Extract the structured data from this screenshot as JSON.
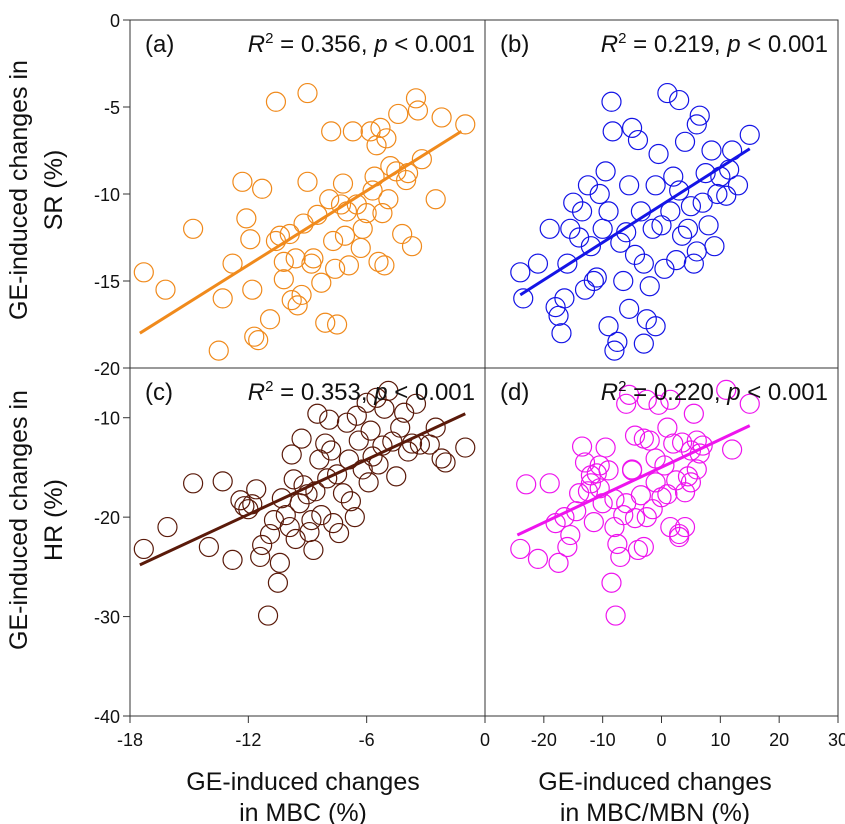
{
  "figure": {
    "ylabel_top": [
      "GE-induced changes in",
      "SR (%)"
    ],
    "ylabel_bottom": [
      "GE-induced changes in",
      "HR (%)"
    ],
    "xlabel_left": [
      "GE-induced changes",
      "in MBC (%)"
    ],
    "xlabel_right": [
      "GE-induced changes",
      "in MBC/MBN (%)"
    ]
  },
  "chart_data": [
    {
      "type": "scatter",
      "panel": "(a)",
      "stat_r2": "= 0.356,",
      "stat_p": "< 0.001",
      "color": "#f08a1c",
      "xlim": [
        -18,
        0
      ],
      "ylim": [
        -20,
        0
      ],
      "xticks": [],
      "yticks": [
        0,
        -5,
        -10,
        -15,
        -20
      ],
      "fit": [
        [
          -17.5,
          -18.0
        ],
        [
          -1.2,
          -6.4
        ]
      ],
      "points": [
        [
          -17.3,
          -14.5
        ],
        [
          -16.2,
          -15.5
        ],
        [
          -14.8,
          -12.0
        ],
        [
          -13.5,
          -19.0
        ],
        [
          -13.3,
          -16.0
        ],
        [
          -12.8,
          -14.0
        ],
        [
          -12.3,
          -9.3
        ],
        [
          -12.1,
          -11.4
        ],
        [
          -11.9,
          -12.6
        ],
        [
          -11.8,
          -15.5
        ],
        [
          -11.7,
          -18.2
        ],
        [
          -11.5,
          -18.4
        ],
        [
          -11.3,
          -9.7
        ],
        [
          -10.9,
          -17.2
        ],
        [
          -10.6,
          -4.7
        ],
        [
          -10.6,
          -12.7
        ],
        [
          -10.4,
          -12.4
        ],
        [
          -10.2,
          -13.9
        ],
        [
          -10.2,
          -14.9
        ],
        [
          -9.9,
          -12.3
        ],
        [
          -9.8,
          -16.1
        ],
        [
          -9.6,
          -13.7
        ],
        [
          -9.5,
          -16.4
        ],
        [
          -9.3,
          -15.8
        ],
        [
          -9.2,
          -11.7
        ],
        [
          -9.0,
          -9.3
        ],
        [
          -9.0,
          -4.2
        ],
        [
          -8.8,
          -14.0
        ],
        [
          -8.7,
          -13.7
        ],
        [
          -8.5,
          -11.2
        ],
        [
          -8.3,
          -15.1
        ],
        [
          -8.1,
          -17.4
        ],
        [
          -7.9,
          -10.3
        ],
        [
          -7.8,
          -6.4
        ],
        [
          -7.7,
          -12.7
        ],
        [
          -7.6,
          -14.3
        ],
        [
          -7.5,
          -17.5
        ],
        [
          -7.3,
          -10.6
        ],
        [
          -7.2,
          -9.4
        ],
        [
          -7.1,
          -12.4
        ],
        [
          -7.0,
          -11.0
        ],
        [
          -6.9,
          -14.1
        ],
        [
          -6.7,
          -6.4
        ],
        [
          -6.5,
          -10.6
        ],
        [
          -6.3,
          -13.1
        ],
        [
          -6.2,
          -12.0
        ],
        [
          -6.0,
          -11.1
        ],
        [
          -5.8,
          -6.4
        ],
        [
          -5.7,
          -9.8
        ],
        [
          -5.6,
          -9.0
        ],
        [
          -5.5,
          -7.2
        ],
        [
          -5.4,
          -13.9
        ],
        [
          -5.3,
          -6.2
        ],
        [
          -5.2,
          -11.1
        ],
        [
          -5.1,
          -14.1
        ],
        [
          -5.0,
          -6.8
        ],
        [
          -4.9,
          -10.3
        ],
        [
          -4.8,
          -8.4
        ],
        [
          -4.5,
          -8.7
        ],
        [
          -4.4,
          -5.4
        ],
        [
          -4.2,
          -12.3
        ],
        [
          -4.0,
          -9.2
        ],
        [
          -3.9,
          -8.8
        ],
        [
          -3.7,
          -13.0
        ],
        [
          -3.5,
          -4.5
        ],
        [
          -3.4,
          -5.2
        ],
        [
          -3.2,
          -8.0
        ],
        [
          -2.5,
          -10.3
        ],
        [
          -2.2,
          -5.6
        ],
        [
          -1.0,
          -6.0
        ]
      ]
    },
    {
      "type": "scatter",
      "panel": "(b)",
      "stat_r2": "= 0.219,",
      "stat_p": "< 0.001",
      "color": "#1414e6",
      "xlim": [
        -30,
        30
      ],
      "ylim": [
        -20,
        0
      ],
      "xticks": [],
      "yticks": [],
      "fit": [
        [
          -24.0,
          -15.8
        ],
        [
          15.0,
          -7.4
        ]
      ],
      "points": [
        [
          -24.0,
          -14.5
        ],
        [
          -23.5,
          -16.0
        ],
        [
          -21.0,
          -14.0
        ],
        [
          -19.0,
          -12.0
        ],
        [
          -18.0,
          -16.5
        ],
        [
          -17.5,
          -17.0
        ],
        [
          -17.0,
          -18.0
        ],
        [
          -16.5,
          -16.0
        ],
        [
          -16.0,
          -14.0
        ],
        [
          -15.5,
          -12.0
        ],
        [
          -15.0,
          -10.5
        ],
        [
          -14.0,
          -12.5
        ],
        [
          -13.5,
          -11.0
        ],
        [
          -13.0,
          -15.5
        ],
        [
          -12.5,
          -9.5
        ],
        [
          -12.0,
          -13.0
        ],
        [
          -11.5,
          -15.0
        ],
        [
          -11.0,
          -14.8
        ],
        [
          -10.5,
          -10.0
        ],
        [
          -10.0,
          -12.0
        ],
        [
          -9.5,
          -8.7
        ],
        [
          -9.0,
          -11.0
        ],
        [
          -8.5,
          -4.7
        ],
        [
          -8.3,
          -6.4
        ],
        [
          -8.0,
          -19.0
        ],
        [
          -7.5,
          -18.5
        ],
        [
          -7.0,
          -12.8
        ],
        [
          -6.5,
          -15.0
        ],
        [
          -6.0,
          -12.2
        ],
        [
          -5.5,
          -9.5
        ],
        [
          -5.0,
          -6.2
        ],
        [
          -4.5,
          -13.5
        ],
        [
          -4.0,
          -6.9
        ],
        [
          -3.5,
          -11.0
        ],
        [
          -3.0,
          -14.0
        ],
        [
          -2.5,
          -17.2
        ],
        [
          -2.0,
          -15.3
        ],
        [
          -1.5,
          -12.0
        ],
        [
          -1.0,
          -9.5
        ],
        [
          -0.5,
          -7.7
        ],
        [
          0.0,
          -11.8
        ],
        [
          0.5,
          -14.3
        ],
        [
          1.0,
          -4.2
        ],
        [
          1.5,
          -11.0
        ],
        [
          2.0,
          -9.0
        ],
        [
          2.5,
          -13.8
        ],
        [
          3.0,
          -9.8
        ],
        [
          3.5,
          -12.4
        ],
        [
          4.0,
          -7.0
        ],
        [
          4.5,
          -12.0
        ],
        [
          5.0,
          -10.7
        ],
        [
          5.5,
          -14.0
        ],
        [
          6.0,
          -6.0
        ],
        [
          6.5,
          -5.5
        ],
        [
          7.0,
          -10.5
        ],
        [
          7.5,
          -8.8
        ],
        [
          8.0,
          -11.8
        ],
        [
          8.5,
          -7.5
        ],
        [
          9.0,
          -13.0
        ],
        [
          9.5,
          -10.0
        ],
        [
          10.0,
          -9.0
        ],
        [
          11.0,
          -10.1
        ],
        [
          11.5,
          -8.6
        ],
        [
          12.0,
          -7.5
        ],
        [
          13.0,
          -9.5
        ],
        [
          15.0,
          -6.6
        ],
        [
          -3.0,
          -18.6
        ],
        [
          -9.0,
          -17.6
        ],
        [
          3.0,
          -4.6
        ],
        [
          -5.5,
          -16.6
        ],
        [
          6.0,
          -13.3
        ],
        [
          -1.0,
          -17.6
        ]
      ]
    },
    {
      "type": "scatter",
      "panel": "(c)",
      "stat_r2": "= 0.353,",
      "stat_p": "< 0.001",
      "color": "#5a1a0a",
      "xlim": [
        -18,
        0
      ],
      "ylim": [
        -40,
        -5
      ],
      "xticks": [
        -18,
        -12,
        -6,
        0
      ],
      "yticks": [
        -10,
        -20,
        -30,
        -40
      ],
      "fit": [
        [
          -17.5,
          -24.8
        ],
        [
          -1.0,
          -9.6
        ]
      ],
      "points": [
        [
          -17.3,
          -23.2
        ],
        [
          -16.1,
          -21.0
        ],
        [
          -14.8,
          -16.6
        ],
        [
          -14.0,
          -23.0
        ],
        [
          -13.3,
          -16.4
        ],
        [
          -12.8,
          -24.3
        ],
        [
          -12.4,
          -18.3
        ],
        [
          -12.2,
          -18.9
        ],
        [
          -12.0,
          -19.2
        ],
        [
          -11.8,
          -18.7
        ],
        [
          -11.6,
          -17.2
        ],
        [
          -11.4,
          -24.0
        ],
        [
          -11.3,
          -22.8
        ],
        [
          -11.0,
          -29.9
        ],
        [
          -10.9,
          -21.7
        ],
        [
          -10.7,
          -20.3
        ],
        [
          -10.5,
          -26.6
        ],
        [
          -10.4,
          -24.6
        ],
        [
          -10.3,
          -18.1
        ],
        [
          -10.1,
          -19.8
        ],
        [
          -9.9,
          -21.0
        ],
        [
          -9.8,
          -13.7
        ],
        [
          -9.7,
          -16.2
        ],
        [
          -9.6,
          -22.2
        ],
        [
          -9.4,
          -18.6
        ],
        [
          -9.3,
          -12.1
        ],
        [
          -9.2,
          -16.8
        ],
        [
          -9.0,
          -17.7
        ],
        [
          -8.9,
          -21.5
        ],
        [
          -8.8,
          -20.3
        ],
        [
          -8.7,
          -23.3
        ],
        [
          -8.6,
          -17.4
        ],
        [
          -8.5,
          -9.6
        ],
        [
          -8.4,
          -14.2
        ],
        [
          -8.3,
          -19.8
        ],
        [
          -8.1,
          -12.6
        ],
        [
          -8.0,
          -16.1
        ],
        [
          -7.9,
          -10.2
        ],
        [
          -7.8,
          -13.3
        ],
        [
          -7.7,
          -20.6
        ],
        [
          -7.5,
          -15.7
        ],
        [
          -7.4,
          -21.6
        ],
        [
          -7.2,
          -17.6
        ],
        [
          -7.0,
          -10.5
        ],
        [
          -6.9,
          -14.2
        ],
        [
          -6.8,
          -18.4
        ],
        [
          -6.6,
          -20.0
        ],
        [
          -6.5,
          -9.8
        ],
        [
          -6.4,
          -12.3
        ],
        [
          -6.2,
          -15.2
        ],
        [
          -6.0,
          -8.5
        ],
        [
          -5.9,
          -16.5
        ],
        [
          -5.8,
          -11.3
        ],
        [
          -5.7,
          -13.9
        ],
        [
          -5.5,
          -8.0
        ],
        [
          -5.4,
          -14.7
        ],
        [
          -5.2,
          -12.8
        ],
        [
          -5.1,
          -9.1
        ],
        [
          -4.9,
          -7.3
        ],
        [
          -4.7,
          -12.4
        ],
        [
          -4.5,
          -15.9
        ],
        [
          -4.3,
          -11.0
        ],
        [
          -4.1,
          -9.5
        ],
        [
          -3.9,
          -13.4
        ],
        [
          -3.7,
          -12.6
        ],
        [
          -3.5,
          -8.6
        ],
        [
          -3.3,
          -12.7
        ],
        [
          -2.8,
          -12.7
        ],
        [
          -2.5,
          -11.0
        ],
        [
          -2.2,
          -14.1
        ],
        [
          -2.0,
          -14.5
        ],
        [
          -1.0,
          -13.0
        ]
      ]
    },
    {
      "type": "scatter",
      "panel": "(d)",
      "stat_r2": "= 0.220,",
      "stat_p": "< 0.001",
      "color": "#ee14ee",
      "xlim": [
        -30,
        30
      ],
      "ylim": [
        -40,
        -5
      ],
      "xticks": [
        -20,
        -10,
        0,
        10,
        20,
        30
      ],
      "yticks": [],
      "fit": [
        [
          -24.5,
          -21.8
        ],
        [
          15.0,
          -10.8
        ]
      ],
      "points": [
        [
          -24.0,
          -23.2
        ],
        [
          -23.0,
          -16.7
        ],
        [
          -21.0,
          -24.2
        ],
        [
          -19.0,
          -16.6
        ],
        [
          -18.0,
          -20.6
        ],
        [
          -17.5,
          -24.6
        ],
        [
          -16.5,
          -20.0
        ],
        [
          -16.0,
          -23.0
        ],
        [
          -15.5,
          -21.8
        ],
        [
          -14.5,
          -19.4
        ],
        [
          -14.0,
          -17.6
        ],
        [
          -13.5,
          -12.9
        ],
        [
          -13.0,
          -14.5
        ],
        [
          -12.5,
          -17.4
        ],
        [
          -12.0,
          -16.6
        ],
        [
          -11.5,
          -20.5
        ],
        [
          -11.0,
          -15.6
        ],
        [
          -10.5,
          -14.8
        ],
        [
          -10.0,
          -18.6
        ],
        [
          -9.5,
          -13.0
        ],
        [
          -9.0,
          -15.3
        ],
        [
          -8.5,
          -26.6
        ],
        [
          -8.0,
          -21.0
        ],
        [
          -7.8,
          -29.9
        ],
        [
          -7.5,
          -22.7
        ],
        [
          -7.0,
          -24.0
        ],
        [
          -6.5,
          -19.8
        ],
        [
          -6.0,
          -18.6
        ],
        [
          -5.5,
          -7.7
        ],
        [
          -5.0,
          -15.2
        ],
        [
          -4.5,
          -20.1
        ],
        [
          -4.0,
          -23.3
        ],
        [
          -3.5,
          -17.8
        ],
        [
          -3.0,
          -12.1
        ],
        [
          -2.5,
          -20.0
        ],
        [
          -2.0,
          -12.3
        ],
        [
          -1.5,
          -19.2
        ],
        [
          -1.0,
          -16.5
        ],
        [
          -0.5,
          -8.7
        ],
        [
          0.0,
          -18.0
        ],
        [
          0.5,
          -14.8
        ],
        [
          1.0,
          -17.7
        ],
        [
          1.5,
          -21.0
        ],
        [
          2.0,
          -12.6
        ],
        [
          2.5,
          -16.3
        ],
        [
          3.0,
          -21.7
        ],
        [
          3.5,
          -12.5
        ],
        [
          4.0,
          -17.5
        ],
        [
          4.5,
          -15.9
        ],
        [
          5.0,
          -13.3
        ],
        [
          5.5,
          -9.6
        ],
        [
          6.0,
          -15.2
        ],
        [
          6.5,
          -13.6
        ],
        [
          7.0,
          -12.8
        ],
        [
          1.5,
          -8.2
        ],
        [
          -1.0,
          -14.1
        ],
        [
          -5.0,
          -15.3
        ],
        [
          -8.0,
          -18.2
        ],
        [
          -10.5,
          -17.1
        ],
        [
          4.0,
          -21.0
        ],
        [
          6.0,
          -12.3
        ],
        [
          11.0,
          -7.2
        ],
        [
          12.0,
          -13.2
        ],
        [
          15.0,
          -8.6
        ],
        [
          3.0,
          -22.0
        ],
        [
          -3.0,
          -23.0
        ],
        [
          -2.5,
          -8.2
        ],
        [
          1.0,
          -11.0
        ],
        [
          -6.0,
          -8.6
        ],
        [
          -4.5,
          -11.8
        ],
        [
          -12.0,
          -15.8
        ],
        [
          5.0,
          -16.5
        ]
      ]
    }
  ]
}
